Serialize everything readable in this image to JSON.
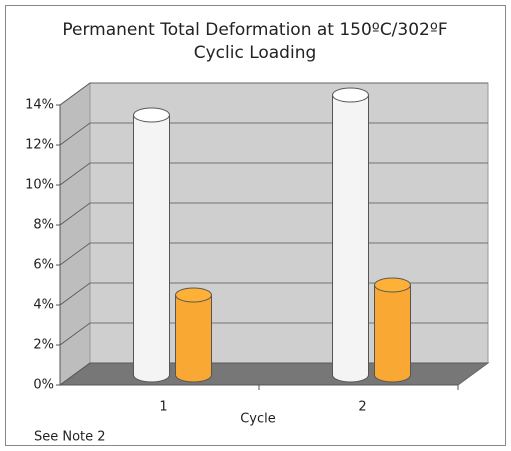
{
  "chart_data": {
    "type": "bar3d",
    "title": [
      "Permanent Total Deformation at 150ºC/302ºF",
      "Cyclic Loading"
    ],
    "x_label": "Cycle",
    "annotation": "See Note 2",
    "categories": [
      "1",
      "2"
    ],
    "series": [
      {
        "color": "#f4f4f4",
        "values": [
          13,
          14
        ]
      },
      {
        "color": "#f9a833",
        "values": [
          4,
          4.5
        ]
      }
    ],
    "ylim": [
      0,
      14
    ],
    "yticks": [
      {
        "value": 0,
        "label": "0%"
      },
      {
        "value": 2,
        "label": "2%"
      },
      {
        "value": 4,
        "label": "4%"
      },
      {
        "value": 6,
        "label": "6%"
      },
      {
        "value": 8,
        "label": "8%"
      },
      {
        "value": 10,
        "label": "10%"
      },
      {
        "value": 12,
        "label": "12%"
      },
      {
        "value": 14,
        "label": "14%"
      }
    ],
    "grid": true
  }
}
